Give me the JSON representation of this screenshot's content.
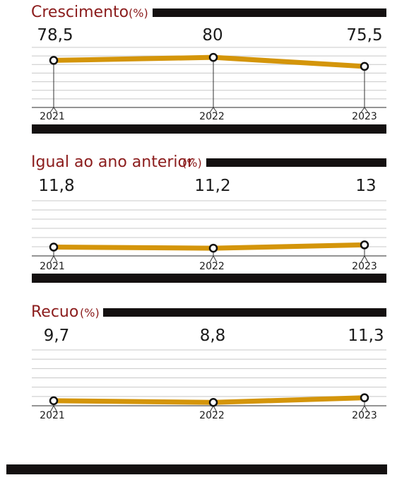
{
  "colors": {
    "line": "#d4950a",
    "title": "#8b1c1c",
    "bar": "#141010",
    "grid": "#c8c8c8"
  },
  "chart_data": [
    {
      "type": "line",
      "title": "Crescimento",
      "unit": "(%)",
      "x": [
        "2021",
        "2022",
        "2023"
      ],
      "value_labels": [
        "78,5",
        "80",
        "75,5"
      ],
      "values": [
        78.5,
        80,
        75.5
      ],
      "ylim": [
        55,
        85
      ]
    },
    {
      "type": "line",
      "title": "Igual ao ano anterior",
      "unit": "(%)",
      "x": [
        "2021",
        "2022",
        "2023"
      ],
      "value_labels": [
        "11,8",
        "11,2",
        "13"
      ],
      "values": [
        11.8,
        11.2,
        13
      ],
      "ylim": [
        7,
        37
      ]
    },
    {
      "type": "line",
      "title": "Recuo",
      "unit": "(%)",
      "x": [
        "2021",
        "2022",
        "2023"
      ],
      "value_labels": [
        "9,7",
        "8,8",
        "11,3"
      ],
      "values": [
        9.7,
        8.8,
        11.3
      ],
      "ylim": [
        7,
        37
      ]
    }
  ]
}
